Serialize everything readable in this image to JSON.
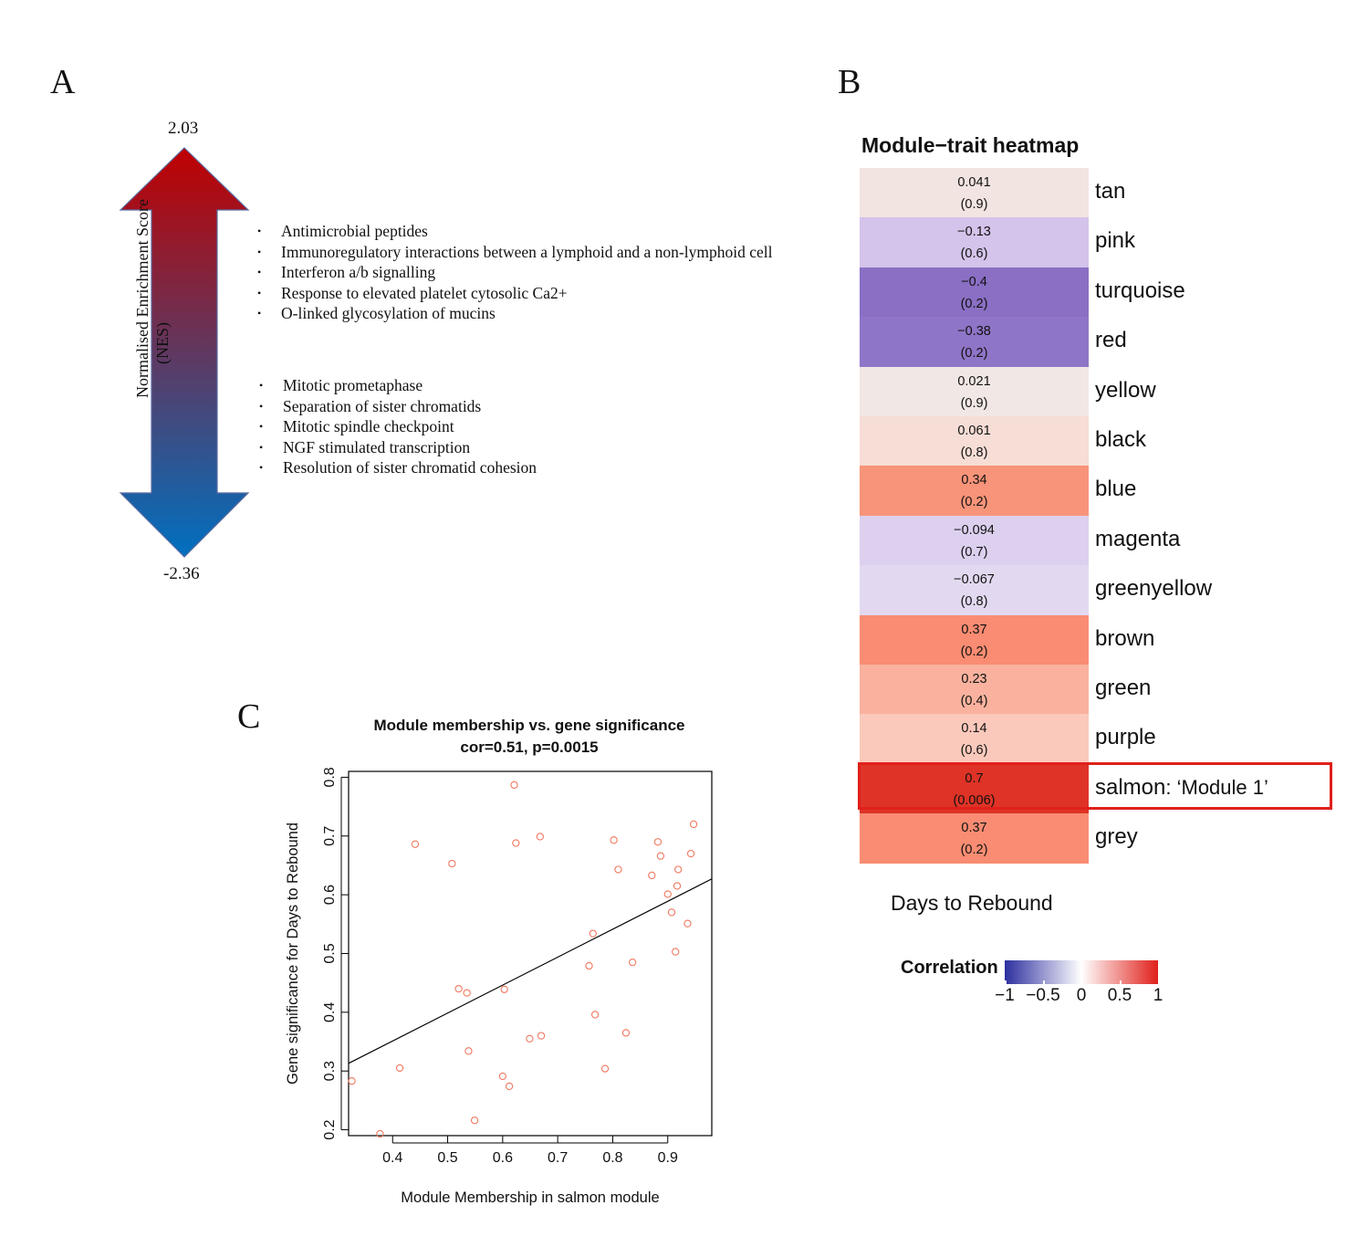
{
  "panels": {
    "a": "A",
    "b": "B",
    "c": "C"
  },
  "nes": {
    "max": "2.03",
    "min": "-2.36",
    "axis_label_line1": "Normalised Enrichment Score",
    "axis_label_line2": "(NES)",
    "colors": {
      "top": "#c00000",
      "bottom": "#0070c0"
    },
    "up_pathways": [
      "Antimicrobial peptides",
      "Immunoregulatory interactions between a lymphoid and a non-lymphoid cell",
      "Interferon a/b signalling",
      "Response to elevated platelet cytosolic Ca2+",
      "O-linked glycosylation of mucins"
    ],
    "down_pathways": [
      "Mitotic prometaphase",
      "Separation of sister chromatids",
      "Mitotic spindle checkpoint",
      "NGF stimulated transcription",
      "Resolution of sister chromatid cohesion"
    ]
  },
  "heatmap": {
    "title": "Module−trait heatmap",
    "xlabel": "Days to Rebound",
    "highlight_label": ": ‘Module 1’",
    "highlight_color": "#e0201a",
    "rows": [
      {
        "module": "tan",
        "corr": "0.041",
        "p": "(0.9)",
        "color": "#f2e4e0"
      },
      {
        "module": "pink",
        "corr": "−0.13",
        "p": "(0.6)",
        "color": "#d4c3ea"
      },
      {
        "module": "turquoise",
        "corr": "−0.4",
        "p": "(0.2)",
        "color": "#8a6fc4"
      },
      {
        "module": "red",
        "corr": "−0.38",
        "p": "(0.2)",
        "color": "#8f75c7"
      },
      {
        "module": "yellow",
        "corr": "0.021",
        "p": "(0.9)",
        "color": "#f1e7e4"
      },
      {
        "module": "black",
        "corr": "0.061",
        "p": "(0.8)",
        "color": "#f6ddd6"
      },
      {
        "module": "blue",
        "corr": "0.34",
        "p": "(0.2)",
        "color": "#f89479"
      },
      {
        "module": "magenta",
        "corr": "−0.094",
        "p": "(0.7)",
        "color": "#dcd0ee"
      },
      {
        "module": "greenyellow",
        "corr": "−0.067",
        "p": "(0.8)",
        "color": "#e2d9f0"
      },
      {
        "module": "brown",
        "corr": "0.37",
        "p": "(0.2)",
        "color": "#f98c72"
      },
      {
        "module": "green",
        "corr": "0.23",
        "p": "(0.4)",
        "color": "#fab29e"
      },
      {
        "module": "purple",
        "corr": "0.14",
        "p": "(0.6)",
        "color": "#fbc9bb"
      },
      {
        "module": "salmon",
        "corr": "0.7",
        "p": "(0.006)",
        "color": "#de3326"
      },
      {
        "module": "grey",
        "corr": "0.37",
        "p": "(0.2)",
        "color": "#f98c72"
      }
    ],
    "legend": {
      "title": "Correlation",
      "ticks": [
        "−1",
        "−0.5",
        "0",
        "0.5",
        "1"
      ],
      "colors": {
        "low": "#2d2f9f",
        "mid": "#ffffff",
        "high": "#e0201a"
      }
    }
  },
  "chart_data": {
    "type": "scatter",
    "title": "Module membership vs. gene significance",
    "subtitle": "cor=0.51, p=0.0015",
    "xlabel": "Module Membership in salmon module",
    "ylabel": "Gene significance for Days to Rebound",
    "xlim": [
      0.32,
      0.98
    ],
    "ylim": [
      0.19,
      0.81
    ],
    "xticks": [
      "0.4",
      "0.5",
      "0.6",
      "0.7",
      "0.8",
      "0.9"
    ],
    "yticks": [
      "0.2",
      "0.3",
      "0.4",
      "0.5",
      "0.6",
      "0.7",
      "0.8"
    ],
    "point_color": "#f07860",
    "fit_line": {
      "x": [
        0.32,
        0.98
      ],
      "y": [
        0.313,
        0.627
      ]
    },
    "points": [
      [
        0.326,
        0.283
      ],
      [
        0.377,
        0.193
      ],
      [
        0.413,
        0.305
      ],
      [
        0.441,
        0.686
      ],
      [
        0.508,
        0.653
      ],
      [
        0.52,
        0.44
      ],
      [
        0.535,
        0.433
      ],
      [
        0.538,
        0.334
      ],
      [
        0.549,
        0.216
      ],
      [
        0.6,
        0.291
      ],
      [
        0.603,
        0.439
      ],
      [
        0.612,
        0.274
      ],
      [
        0.621,
        0.787
      ],
      [
        0.624,
        0.688
      ],
      [
        0.649,
        0.355
      ],
      [
        0.668,
        0.699
      ],
      [
        0.67,
        0.36
      ],
      [
        0.757,
        0.479
      ],
      [
        0.764,
        0.534
      ],
      [
        0.768,
        0.396
      ],
      [
        0.786,
        0.304
      ],
      [
        0.802,
        0.693
      ],
      [
        0.81,
        0.643
      ],
      [
        0.824,
        0.365
      ],
      [
        0.836,
        0.485
      ],
      [
        0.871,
        0.633
      ],
      [
        0.882,
        0.69
      ],
      [
        0.887,
        0.666
      ],
      [
        0.9,
        0.601
      ],
      [
        0.907,
        0.57
      ],
      [
        0.914,
        0.503
      ],
      [
        0.917,
        0.615
      ],
      [
        0.919,
        0.643
      ],
      [
        0.936,
        0.551
      ],
      [
        0.942,
        0.67
      ],
      [
        0.947,
        0.72
      ]
    ]
  }
}
